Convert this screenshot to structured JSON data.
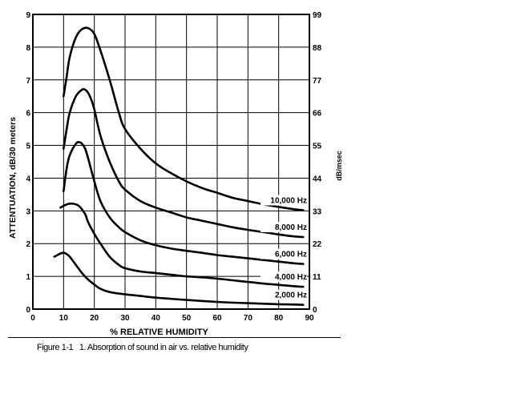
{
  "chart_data": {
    "type": "line",
    "title": "",
    "xlabel": "% RELATIVE HUMIDITY",
    "ylabel": "ATTENTUATION, dB/30 meters",
    "y2label": "dB/msec",
    "xlim": [
      0,
      90
    ],
    "ylim": [
      0,
      9
    ],
    "x_ticks": [
      "0",
      "10",
      "20",
      "30",
      "40",
      "50",
      "60",
      "70",
      "80",
      "90"
    ],
    "y_ticks": [
      "0",
      "1",
      "2",
      "3",
      "4",
      "5",
      "6",
      "7",
      "8",
      "9"
    ],
    "y2_ticks": [
      "0",
      "11",
      "22",
      "33",
      "44",
      "55",
      "66",
      "77",
      "88",
      "99"
    ],
    "grid": true,
    "series": [
      {
        "name": "10,000 Hz",
        "x": [
          10,
          11,
          12,
          14,
          16,
          18,
          20,
          22,
          25,
          28,
          30,
          35,
          40,
          45,
          50,
          55,
          60,
          65,
          70,
          75,
          80,
          85,
          88
        ],
        "y": [
          6.5,
          7.1,
          7.7,
          8.3,
          8.55,
          8.58,
          8.4,
          7.9,
          7.0,
          6.0,
          5.5,
          4.9,
          4.45,
          4.15,
          3.9,
          3.7,
          3.55,
          3.4,
          3.3,
          3.2,
          3.12,
          3.05,
          3.02
        ]
      },
      {
        "name": "8,000 Hz",
        "x": [
          10,
          11,
          12,
          14,
          16,
          17,
          18,
          19,
          20,
          22,
          25,
          28,
          30,
          35,
          40,
          45,
          50,
          55,
          60,
          65,
          70,
          75,
          80,
          85,
          88
        ],
        "y": [
          4.9,
          5.5,
          6.0,
          6.5,
          6.7,
          6.7,
          6.6,
          6.4,
          6.1,
          5.3,
          4.5,
          3.9,
          3.65,
          3.3,
          3.1,
          2.95,
          2.8,
          2.7,
          2.6,
          2.5,
          2.42,
          2.35,
          2.28,
          2.22,
          2.2
        ]
      },
      {
        "name": "6,000 Hz",
        "x": [
          10,
          11,
          12,
          14,
          15,
          16,
          17,
          18,
          20,
          22,
          25,
          28,
          30,
          35,
          40,
          45,
          50,
          55,
          60,
          65,
          70,
          75,
          80,
          85,
          88
        ],
        "y": [
          3.6,
          4.3,
          4.7,
          5.05,
          5.1,
          5.05,
          4.9,
          4.6,
          3.9,
          3.3,
          2.8,
          2.5,
          2.35,
          2.1,
          1.95,
          1.85,
          1.78,
          1.72,
          1.65,
          1.6,
          1.55,
          1.5,
          1.45,
          1.4,
          1.38
        ]
      },
      {
        "name": "4,000 Hz",
        "x": [
          9,
          11,
          13,
          15,
          17,
          18,
          20,
          22,
          25,
          28,
          30,
          35,
          40,
          45,
          50,
          55,
          60,
          65,
          70,
          75,
          80,
          85,
          88
        ],
        "y": [
          3.1,
          3.2,
          3.22,
          3.15,
          2.9,
          2.65,
          2.3,
          2.0,
          1.6,
          1.35,
          1.25,
          1.15,
          1.1,
          1.05,
          1.0,
          0.97,
          0.93,
          0.88,
          0.83,
          0.78,
          0.74,
          0.7,
          0.68
        ]
      },
      {
        "name": "2,000 Hz",
        "x": [
          7,
          8,
          9,
          10,
          11,
          12,
          14,
          16,
          18,
          20,
          22,
          25,
          30,
          35,
          40,
          50,
          60,
          70,
          80,
          85,
          88
        ],
        "y": [
          1.6,
          1.65,
          1.7,
          1.72,
          1.68,
          1.6,
          1.35,
          1.1,
          0.9,
          0.75,
          0.62,
          0.52,
          0.45,
          0.4,
          0.35,
          0.28,
          0.22,
          0.18,
          0.15,
          0.14,
          0.13
        ]
      }
    ]
  },
  "caption": {
    "figure_number": "Figure 1-1",
    "text": "1. Absorption of sound in air vs. relative humidity"
  }
}
